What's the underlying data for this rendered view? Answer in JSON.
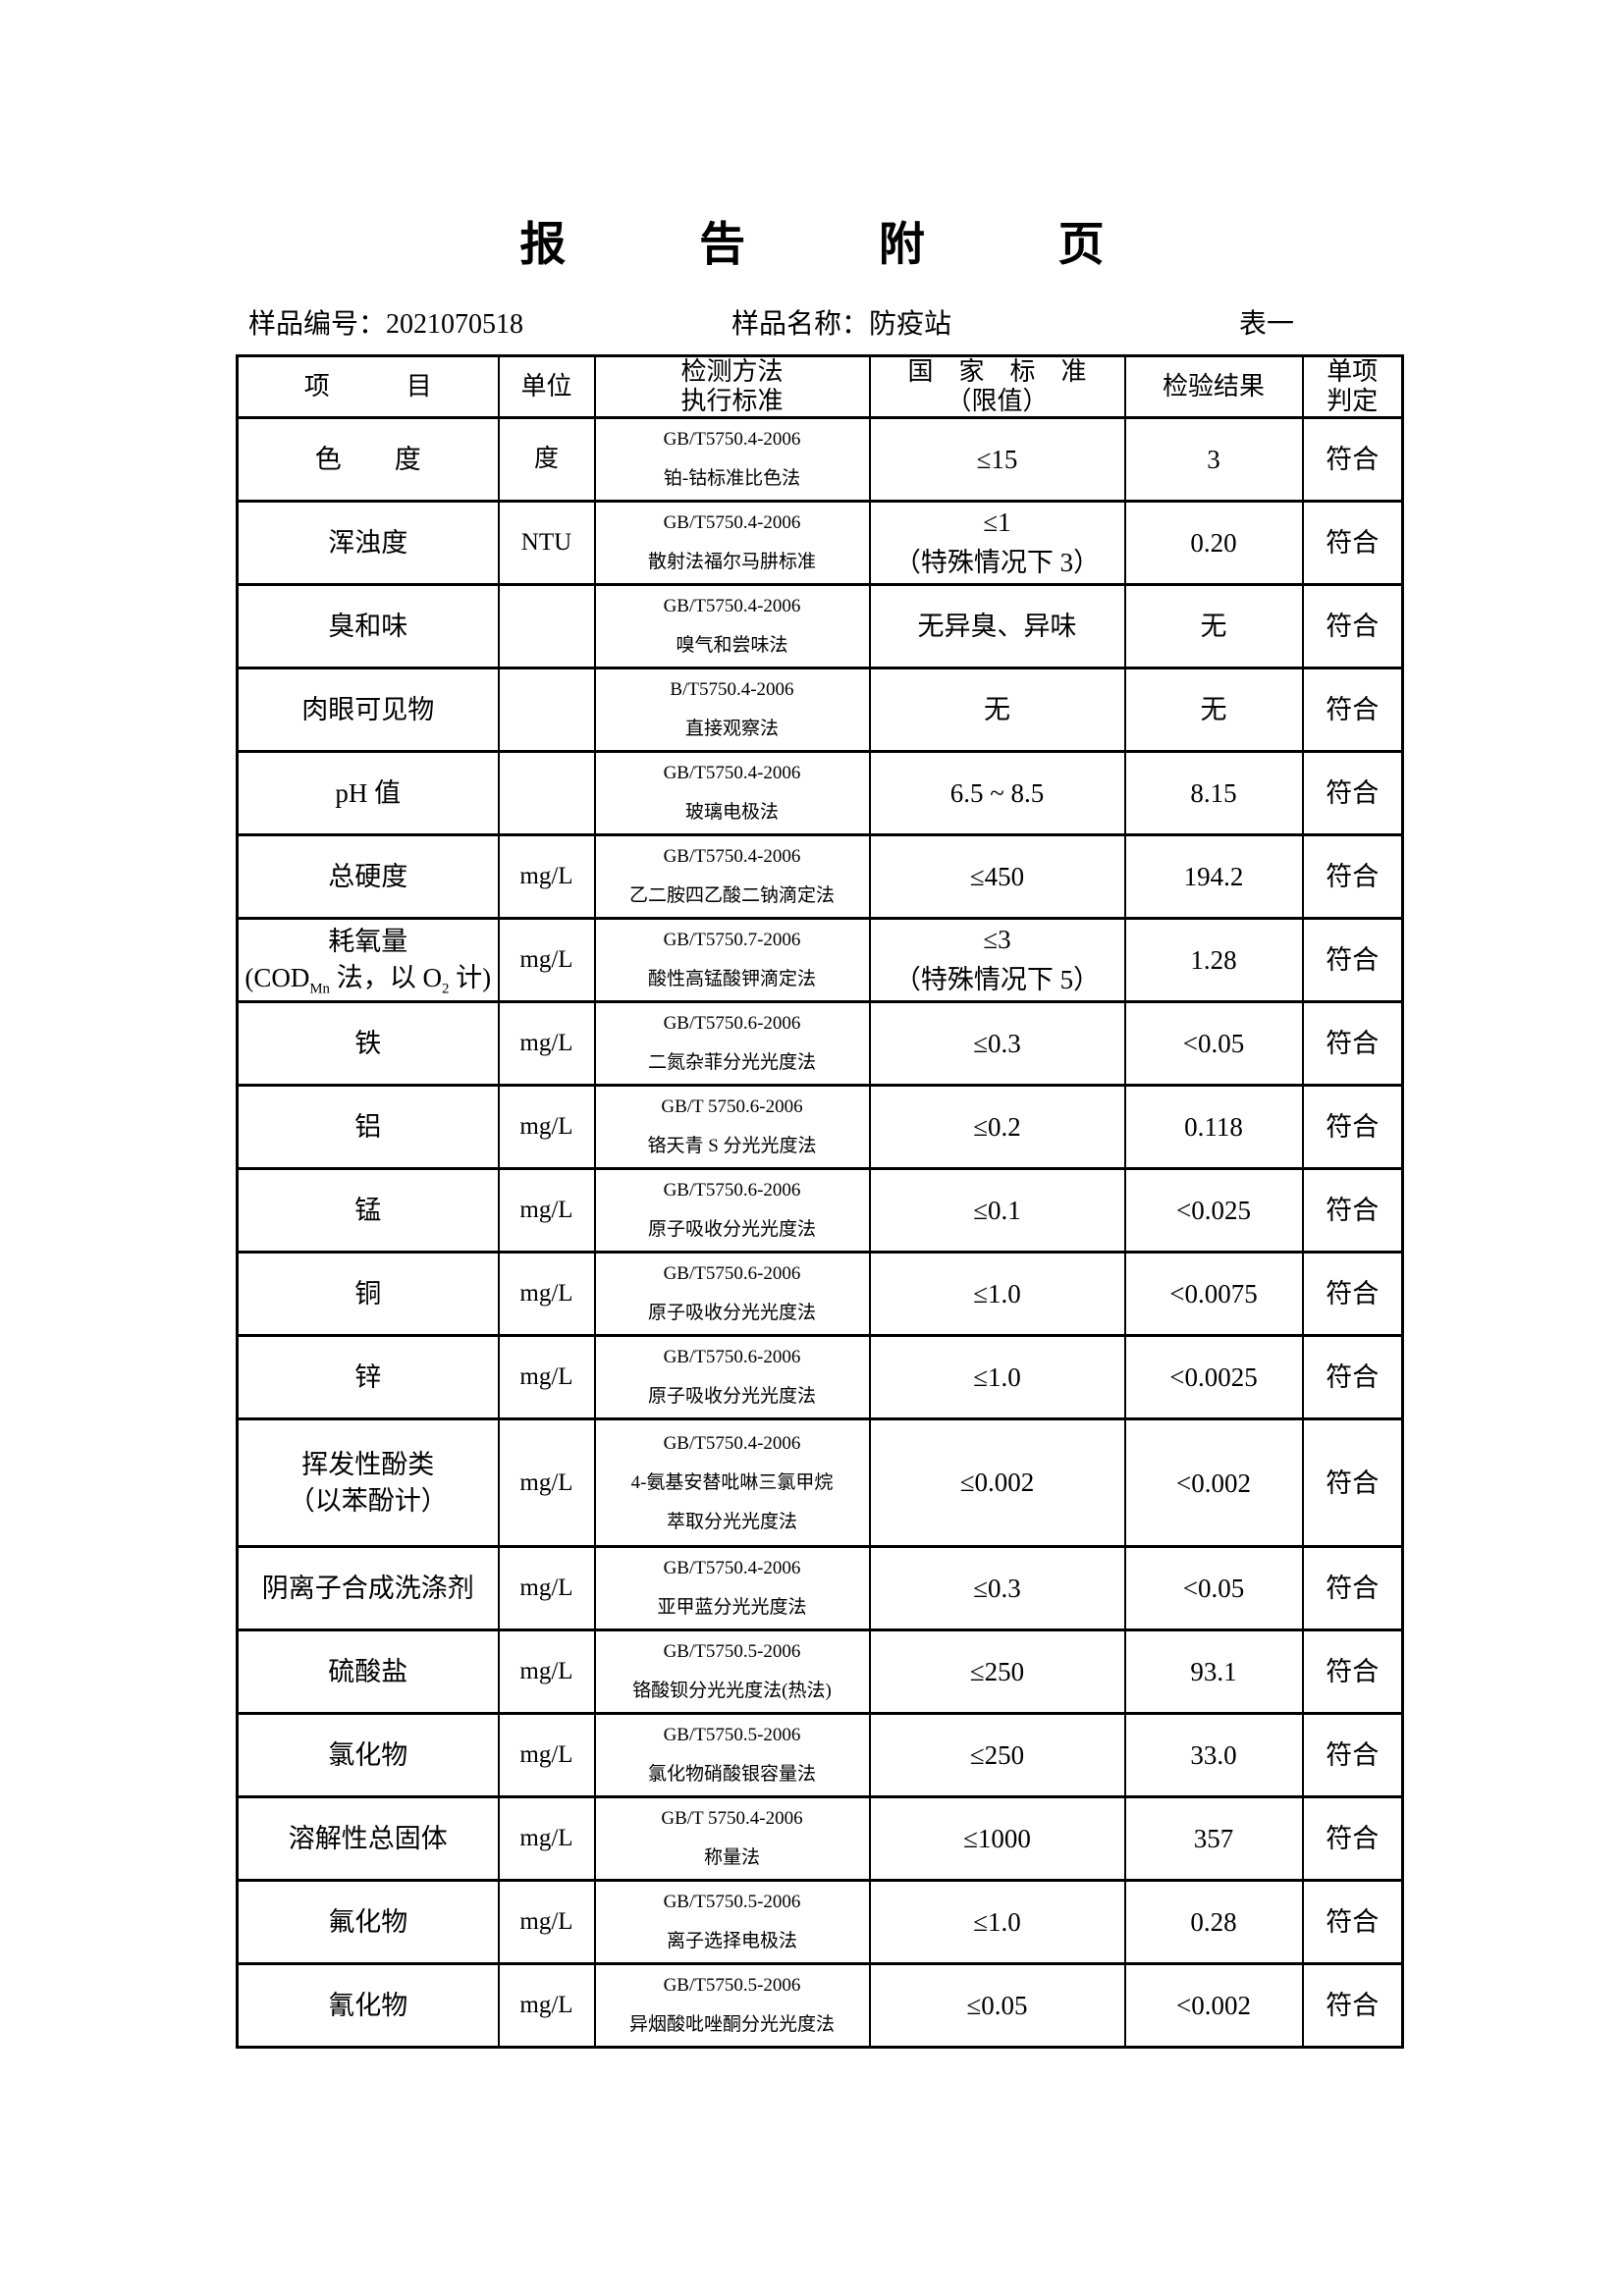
{
  "page": {
    "title": "报 告 附 页",
    "sample_id_label": "样品编号：",
    "sample_id": "2021070518",
    "sample_name_label": "样品名称：",
    "sample_name": "防疫站",
    "table_tag": "表一"
  },
  "table": {
    "header": {
      "item": "项　　　目",
      "unit": "单位",
      "method": [
        "检测方法",
        "执行标准"
      ],
      "standard": [
        "国　家　标　准",
        "（限值）"
      ],
      "result": "检验结果",
      "judge": [
        "单项",
        "判定"
      ]
    },
    "rows": [
      {
        "item": [
          "色　　度"
        ],
        "unit": "度",
        "method": [
          "GB/T5750.4-2006",
          "铂-钴标准比色法"
        ],
        "standard": [
          "≤15"
        ],
        "result": "3",
        "judge": "符合"
      },
      {
        "item": [
          "浑浊度"
        ],
        "unit": "NTU",
        "method": [
          "GB/T5750.4-2006",
          "散射法福尔马肼标准"
        ],
        "standard": [
          "≤1",
          "（特殊情况下 3）"
        ],
        "result": "0.20",
        "judge": "符合"
      },
      {
        "item": [
          "臭和味"
        ],
        "unit": "",
        "method": [
          "GB/T5750.4-2006",
          "嗅气和尝味法"
        ],
        "standard": [
          "无异臭、异味"
        ],
        "result": "无",
        "judge": "符合"
      },
      {
        "item": [
          "肉眼可见物"
        ],
        "unit": "",
        "method": [
          "B/T5750.4-2006",
          "直接观察法"
        ],
        "standard": [
          "无"
        ],
        "result": "无",
        "judge": "符合"
      },
      {
        "item": [
          "pH 值"
        ],
        "unit": "",
        "method": [
          "GB/T5750.4-2006",
          "玻璃电极法"
        ],
        "standard": [
          "6.5 ~ 8.5"
        ],
        "result": "8.15",
        "judge": "符合"
      },
      {
        "item": [
          "总硬度"
        ],
        "unit": "mg/L",
        "method": [
          "GB/T5750.4-2006",
          "乙二胺四乙酸二钠滴定法"
        ],
        "standard": [
          "≤450"
        ],
        "result": "194.2",
        "judge": "符合"
      },
      {
        "item": [
          "耗氧量",
          "(COD{Mn} 法，以 O{2} 计)"
        ],
        "unit": "mg/L",
        "method": [
          "GB/T5750.7-2006",
          "酸性高锰酸钾滴定法"
        ],
        "standard": [
          "≤3",
          "（特殊情况下 5）"
        ],
        "result": "1.28",
        "judge": "符合"
      },
      {
        "item": [
          "铁"
        ],
        "unit": "mg/L",
        "method": [
          "GB/T5750.6-2006",
          "二氮杂菲分光光度法"
        ],
        "standard": [
          "≤0.3"
        ],
        "result": "<0.05",
        "judge": "符合"
      },
      {
        "item": [
          "铝"
        ],
        "unit": "mg/L",
        "method": [
          "GB/T 5750.6-2006",
          "铬天青 S 分光光度法"
        ],
        "standard": [
          "≤0.2"
        ],
        "result": "0.118",
        "judge": "符合"
      },
      {
        "item": [
          "锰"
        ],
        "unit": "mg/L",
        "method": [
          "GB/T5750.6-2006",
          "原子吸收分光光度法"
        ],
        "standard": [
          "≤0.1"
        ],
        "result": "<0.025",
        "judge": "符合"
      },
      {
        "item": [
          "铜"
        ],
        "unit": "mg/L",
        "method": [
          "GB/T5750.6-2006",
          "原子吸收分光光度法"
        ],
        "standard": [
          "≤1.0"
        ],
        "result": "<0.0075",
        "judge": "符合"
      },
      {
        "item": [
          "锌"
        ],
        "unit": "mg/L",
        "method": [
          "GB/T5750.6-2006",
          "原子吸收分光光度法"
        ],
        "standard": [
          "≤1.0"
        ],
        "result": "<0.0025",
        "judge": "符合"
      },
      {
        "item": [
          "挥发性酚类",
          "（以苯酚计）"
        ],
        "unit": "mg/L",
        "method": [
          "GB/T5750.4-2006",
          "4-氨基安替吡啉三氯甲烷",
          "萃取分光光度法"
        ],
        "standard": [
          "≤0.002"
        ],
        "result": "<0.002",
        "judge": "符合"
      },
      {
        "item": [
          "阴离子合成洗涤剂"
        ],
        "unit": "mg/L",
        "method": [
          "GB/T5750.4-2006",
          "亚甲蓝分光光度法"
        ],
        "standard": [
          "≤0.3"
        ],
        "result": "<0.05",
        "judge": "符合"
      },
      {
        "item": [
          "硫酸盐"
        ],
        "unit": "mg/L",
        "method": [
          "GB/T5750.5-2006",
          "铬酸钡分光光度法(热法)"
        ],
        "standard": [
          "≤250"
        ],
        "result": "93.1",
        "judge": "符合"
      },
      {
        "item": [
          "氯化物"
        ],
        "unit": "mg/L",
        "method": [
          "GB/T5750.5-2006",
          "氯化物硝酸银容量法"
        ],
        "standard": [
          "≤250"
        ],
        "result": "33.0",
        "judge": "符合"
      },
      {
        "item": [
          "溶解性总固体"
        ],
        "unit": "mg/L",
        "method": [
          "GB/T 5750.4-2006",
          "称量法"
        ],
        "standard": [
          "≤1000"
        ],
        "result": "357",
        "judge": "符合"
      },
      {
        "item": [
          "氟化物"
        ],
        "unit": "mg/L",
        "method": [
          "GB/T5750.5-2006",
          "离子选择电极法"
        ],
        "standard": [
          "≤1.0"
        ],
        "result": "0.28",
        "judge": "符合"
      },
      {
        "item": [
          "氰化物"
        ],
        "unit": "mg/L",
        "method": [
          "GB/T5750.5-2006",
          "异烟酸吡唑酮分光光度法"
        ],
        "standard": [
          "≤0.05"
        ],
        "result": "<0.002",
        "judge": "符合"
      }
    ]
  }
}
